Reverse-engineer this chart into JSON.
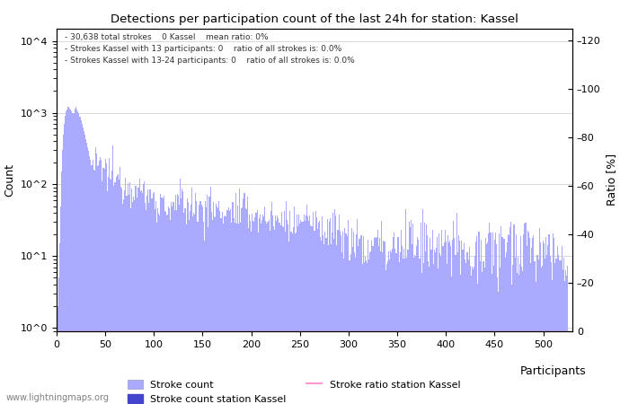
{
  "title": "Detections per participation count of the last 24h for station: Kassel",
  "xlabel": "Participants",
  "ylabel_left": "Count",
  "ylabel_right": "Ratio [%]",
  "annotation_lines": [
    "30,638 total strokes    0 Kassel    mean ratio: 0%",
    "Strokes Kassel with 13 participants: 0    ratio of all strokes is: 0.0%",
    "Strokes Kassel with 13-24 participants: 0    ratio of all strokes is: 0.0%"
  ],
  "watermark": "www.lightningmaps.org",
  "bar_color": "#aaaaff",
  "bar_color_station": "#4444cc",
  "line_color": "#ff99cc",
  "xlim": [
    0,
    530
  ],
  "ylim_ratio": [
    0,
    125
  ],
  "ratio_ticks": [
    0,
    20,
    40,
    60,
    80,
    100,
    120
  ],
  "x_ticks": [
    0,
    50,
    100,
    150,
    200,
    250,
    300,
    350,
    400,
    450,
    500
  ],
  "legend_entries": [
    "Stroke count",
    "Stroke count station Kassel",
    "Stroke ratio station Kassel"
  ],
  "num_bins": 525
}
